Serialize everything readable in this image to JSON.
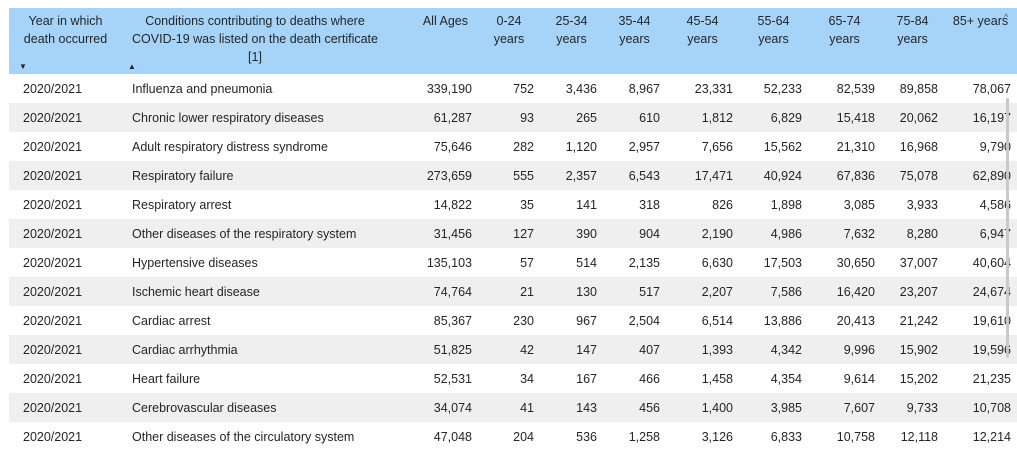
{
  "columns": [
    {
      "label": "Year in which death occurred"
    },
    {
      "label": "Conditions contributing to deaths where COVID-19 was listed on the death certificate [1]"
    },
    {
      "label": "All Ages"
    },
    {
      "label": "0-24 years"
    },
    {
      "label": "25-34 years"
    },
    {
      "label": "35-44 years"
    },
    {
      "label": "45-54 years"
    },
    {
      "label": "55-64 years"
    },
    {
      "label": "65-74 years"
    },
    {
      "label": "75-84 years"
    },
    {
      "label": "85+ years"
    }
  ],
  "rows": [
    {
      "year": "2020/2021",
      "condition": "Influenza and pneumonia",
      "all": "339,190",
      "a0": "752",
      "a25": "3,436",
      "a35": "8,967",
      "a45": "23,331",
      "a55": "52,233",
      "a65": "82,539",
      "a75": "89,858",
      "a85": "78,067"
    },
    {
      "year": "2020/2021",
      "condition": "Chronic lower respiratory diseases",
      "all": "61,287",
      "a0": "93",
      "a25": "265",
      "a35": "610",
      "a45": "1,812",
      "a55": "6,829",
      "a65": "15,418",
      "a75": "20,062",
      "a85": "16,197"
    },
    {
      "year": "2020/2021",
      "condition": "Adult respiratory distress syndrome",
      "all": "75,646",
      "a0": "282",
      "a25": "1,120",
      "a35": "2,957",
      "a45": "7,656",
      "a55": "15,562",
      "a65": "21,310",
      "a75": "16,968",
      "a85": "9,790"
    },
    {
      "year": "2020/2021",
      "condition": "Respiratory failure",
      "all": "273,659",
      "a0": "555",
      "a25": "2,357",
      "a35": "6,543",
      "a45": "17,471",
      "a55": "40,924",
      "a65": "67,836",
      "a75": "75,078",
      "a85": "62,890"
    },
    {
      "year": "2020/2021",
      "condition": "Respiratory arrest",
      "all": "14,822",
      "a0": "35",
      "a25": "141",
      "a35": "318",
      "a45": "826",
      "a55": "1,898",
      "a65": "3,085",
      "a75": "3,933",
      "a85": "4,586"
    },
    {
      "year": "2020/2021",
      "condition": "Other diseases of the respiratory system",
      "all": "31,456",
      "a0": "127",
      "a25": "390",
      "a35": "904",
      "a45": "2,190",
      "a55": "4,986",
      "a65": "7,632",
      "a75": "8,280",
      "a85": "6,947"
    },
    {
      "year": "2020/2021",
      "condition": "Hypertensive diseases",
      "all": "135,103",
      "a0": "57",
      "a25": "514",
      "a35": "2,135",
      "a45": "6,630",
      "a55": "17,503",
      "a65": "30,650",
      "a75": "37,007",
      "a85": "40,604"
    },
    {
      "year": "2020/2021",
      "condition": "Ischemic heart disease",
      "all": "74,764",
      "a0": "21",
      "a25": "130",
      "a35": "517",
      "a45": "2,207",
      "a55": "7,586",
      "a65": "16,420",
      "a75": "23,207",
      "a85": "24,674"
    },
    {
      "year": "2020/2021",
      "condition": "Cardiac arrest",
      "all": "85,367",
      "a0": "230",
      "a25": "967",
      "a35": "2,504",
      "a45": "6,514",
      "a55": "13,886",
      "a65": "20,413",
      "a75": "21,242",
      "a85": "19,610"
    },
    {
      "year": "2020/2021",
      "condition": "Cardiac arrhythmia",
      "all": "51,825",
      "a0": "42",
      "a25": "147",
      "a35": "407",
      "a45": "1,393",
      "a55": "4,342",
      "a65": "9,996",
      "a75": "15,902",
      "a85": "19,596"
    },
    {
      "year": "2020/2021",
      "condition": "Heart failure",
      "all": "52,531",
      "a0": "34",
      "a25": "167",
      "a35": "466",
      "a45": "1,458",
      "a55": "4,354",
      "a65": "9,614",
      "a75": "15,202",
      "a85": "21,235"
    },
    {
      "year": "2020/2021",
      "condition": "Cerebrovascular diseases",
      "all": "34,074",
      "a0": "41",
      "a25": "143",
      "a35": "456",
      "a45": "1,400",
      "a55": "3,985",
      "a65": "7,607",
      "a75": "9,733",
      "a85": "10,708"
    },
    {
      "year": "2020/2021",
      "condition": "Other diseases of the circulatory system",
      "all": "47,048",
      "a0": "204",
      "a25": "536",
      "a35": "1,258",
      "a45": "3,126",
      "a55": "6,833",
      "a65": "10,758",
      "a75": "12,118",
      "a85": "12,214"
    }
  ]
}
